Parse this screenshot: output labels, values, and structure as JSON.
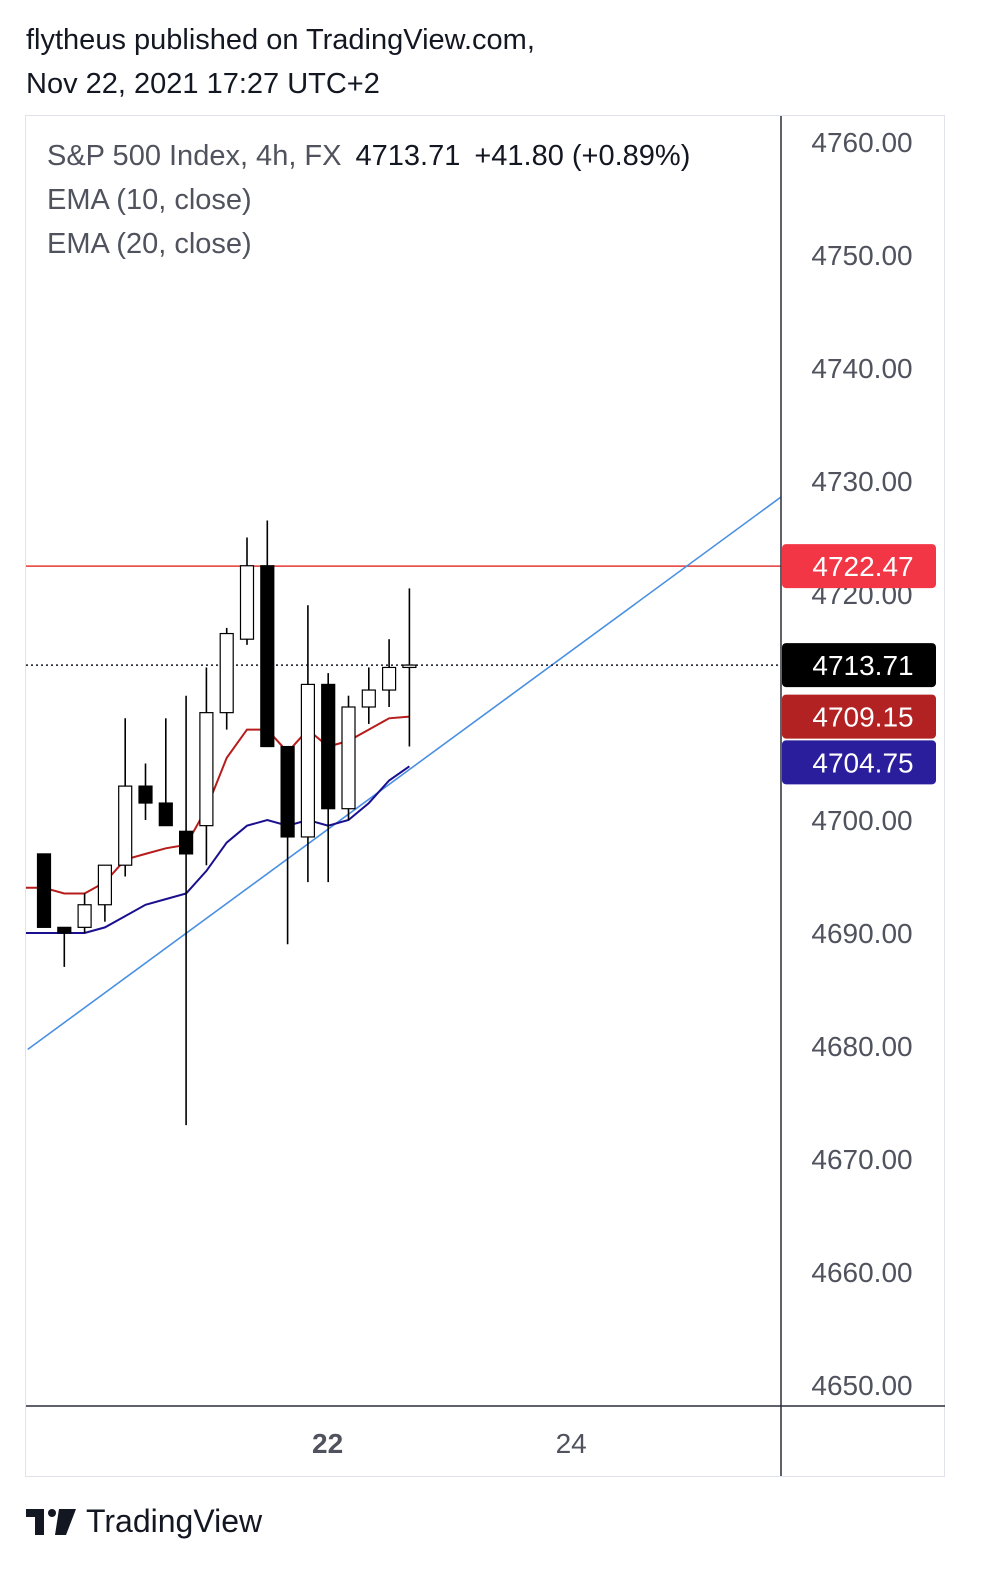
{
  "header": {
    "line1": "flytheus published on TradingView.com,",
    "line2": "Nov 22, 2021 17:27 UTC+2"
  },
  "legend": {
    "symbol": "S&P 500 Index, 4h, FX",
    "price": "4713.71",
    "change": "+41.80 (+0.89%)",
    "ema10": "EMA (10, close)",
    "ema20": "EMA (20, close)"
  },
  "footer": {
    "brand": "TradingView",
    "logo_icon": "tradingview-logo-icon"
  },
  "colors": {
    "up_fill": "#ffffff",
    "down_fill": "#000000",
    "wick": "#000000",
    "ema10": "#b71c1c",
    "ema20": "#1a0f8f",
    "trendline": "#4a90e2",
    "hline": "#e53935",
    "resistance_tag": "#f23645",
    "price_tag": "#000000",
    "ema10_tag": "#b22222",
    "ema20_tag": "#2a1e9c"
  },
  "chart_data": {
    "type": "candlestick",
    "ylim": [
      4645,
      4764
    ],
    "y_ticks": [
      "4760.00",
      "4750.00",
      "4740.00",
      "4730.00",
      "4720.00",
      "4700.00",
      "4690.00",
      "4680.00",
      "4670.00",
      "4660.00",
      "4650.00"
    ],
    "x_labels": [
      {
        "label": "22",
        "index": 14,
        "bold": true
      },
      {
        "label": "24",
        "index": 26,
        "bold": false
      }
    ],
    "candles": [
      {
        "o": 4697.0,
        "h": 4697.0,
        "l": 4690.5,
        "c": 4690.5
      },
      {
        "o": 4690.5,
        "h": 4690.5,
        "l": 4687.0,
        "c": 4690.0
      },
      {
        "o": 4690.5,
        "h": 4693.5,
        "l": 4690.0,
        "c": 4692.5
      },
      {
        "o": 4692.5,
        "h": 4695.0,
        "l": 4691.0,
        "c": 4696.0
      },
      {
        "o": 4696.0,
        "h": 4709.0,
        "l": 4695.0,
        "c": 4703.0
      },
      {
        "o": 4703.0,
        "h": 4705.0,
        "l": 4700.0,
        "c": 4701.5
      },
      {
        "o": 4701.5,
        "h": 4709.0,
        "l": 4700.0,
        "c": 4699.5
      },
      {
        "o": 4699.0,
        "h": 4711.0,
        "l": 4673.0,
        "c": 4697.0
      },
      {
        "o": 4699.5,
        "h": 4713.5,
        "l": 4696.0,
        "c": 4709.5
      },
      {
        "o": 4709.5,
        "h": 4717.0,
        "l": 4708.0,
        "c": 4716.5
      },
      {
        "o": 4716.0,
        "h": 4725.0,
        "l": 4715.5,
        "c": 4722.5
      },
      {
        "o": 4722.5,
        "h": 4726.5,
        "l": 4706.5,
        "c": 4706.5
      },
      {
        "o": 4706.5,
        "h": 4706.5,
        "l": 4689.0,
        "c": 4698.5
      },
      {
        "o": 4698.5,
        "h": 4719.0,
        "l": 4694.5,
        "c": 4712.0
      },
      {
        "o": 4712.0,
        "h": 4713.0,
        "l": 4694.5,
        "c": 4701.0
      },
      {
        "o": 4701.0,
        "h": 4711.0,
        "l": 4700.0,
        "c": 4710.0
      },
      {
        "o": 4710.0,
        "h": 4713.5,
        "l": 4708.5,
        "c": 4711.5
      },
      {
        "o": 4711.5,
        "h": 4716.0,
        "l": 4710.0,
        "c": 4713.5
      },
      {
        "o": 4713.5,
        "h": 4720.5,
        "l": 4706.5,
        "c": 4713.71
      }
    ],
    "series": [
      {
        "name": "EMA (10, close)",
        "color": "#b71c1c",
        "values": [
          4694.0,
          4693.5,
          4693.5,
          4694.5,
          4696.5,
          4697.0,
          4697.5,
          4697.8,
          4701.0,
          4705.5,
          4708.0,
          4708.0,
          4706.0,
          4708.0,
          4706.5,
          4707.0,
          4708.0,
          4709.0,
          4709.15
        ]
      },
      {
        "name": "EMA (20, close)",
        "color": "#1a0f8f",
        "values": [
          4690.0,
          4690.0,
          4690.0,
          4690.5,
          4691.5,
          4692.5,
          4693.0,
          4693.5,
          4695.5,
          4698.0,
          4699.5,
          4700.0,
          4699.5,
          4700.0,
          4699.5,
          4700.0,
          4701.5,
          4703.5,
          4704.75
        ]
      }
    ],
    "hline": {
      "value": 4722.47,
      "tag": "4722.47"
    },
    "price_line": {
      "value": 4713.71,
      "tag": "4713.71"
    },
    "ema_tags": [
      {
        "value": 4709.15,
        "tag": "4709.15"
      },
      {
        "value": 4704.75,
        "tag": "4704.75"
      }
    ],
    "trendline": {
      "from": {
        "index": -0.8,
        "value": 4679.7
      },
      "to": {
        "index": 37.0,
        "value": 4729.5
      }
    }
  }
}
